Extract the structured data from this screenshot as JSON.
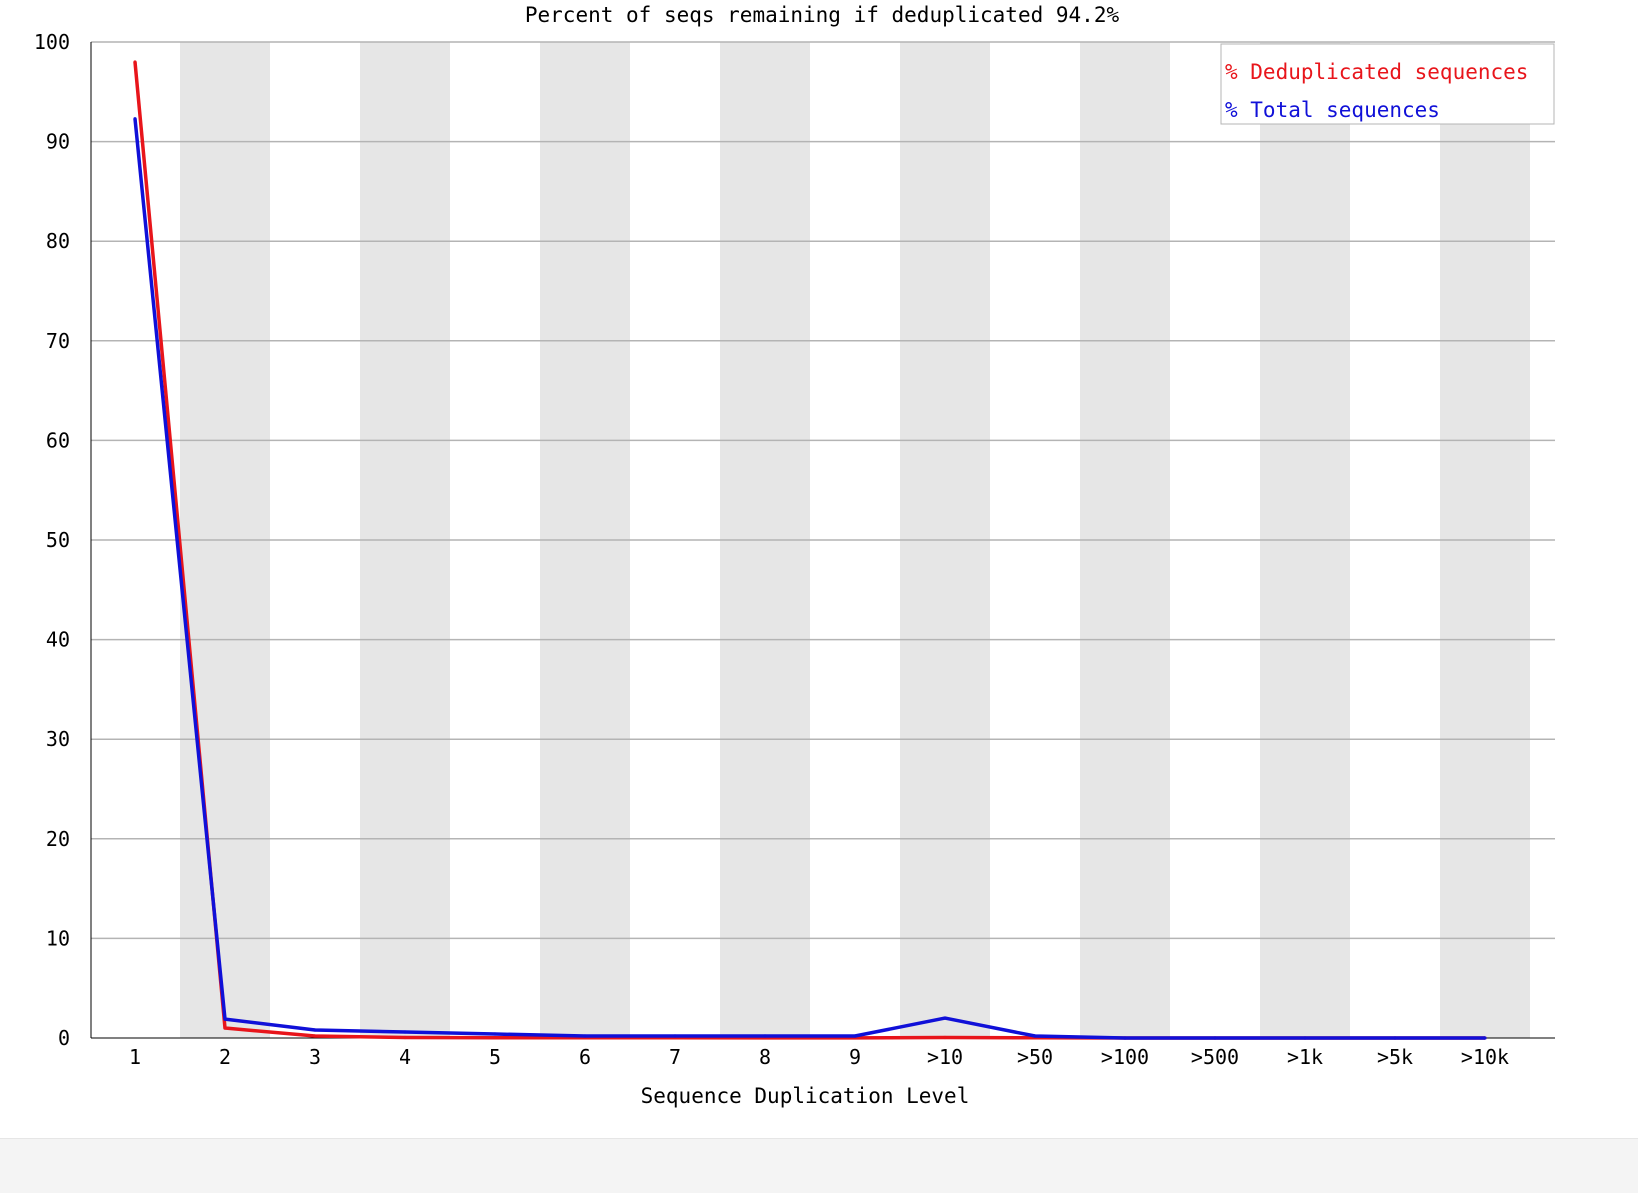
{
  "chart_data": {
    "type": "line",
    "title": "Percent of seqs remaining if deduplicated 94.2%",
    "xlabel": "Sequence Duplication Level",
    "ylabel": "",
    "ylim": [
      0,
      100
    ],
    "yticks": [
      0,
      10,
      20,
      30,
      40,
      50,
      60,
      70,
      80,
      90,
      100
    ],
    "categories": [
      "1",
      "2",
      "3",
      "4",
      "5",
      "6",
      "7",
      "8",
      "9",
      ">10",
      ">50",
      ">100",
      ">500",
      ">1k",
      ">5k",
      ">10k"
    ],
    "series": [
      {
        "name": "% Deduplicated sequences",
        "color": "#e8151b",
        "values": [
          98.0,
          1.0,
          0.2,
          0.05,
          0.03,
          0.02,
          0.02,
          0.01,
          0.01,
          0.05,
          0.02,
          0.0,
          0.0,
          0.0,
          0.0,
          0.0
        ]
      },
      {
        "name": "% Total sequences",
        "color": "#1010d8",
        "values": [
          92.3,
          1.9,
          0.8,
          0.6,
          0.4,
          0.2,
          0.2,
          0.2,
          0.2,
          2.0,
          0.2,
          0.0,
          0.0,
          0.0,
          0.0,
          0.0
        ]
      }
    ],
    "grid": true,
    "legend": "top-right",
    "band_color": "#e6e6e6",
    "grid_color": "#b4b4b4"
  }
}
